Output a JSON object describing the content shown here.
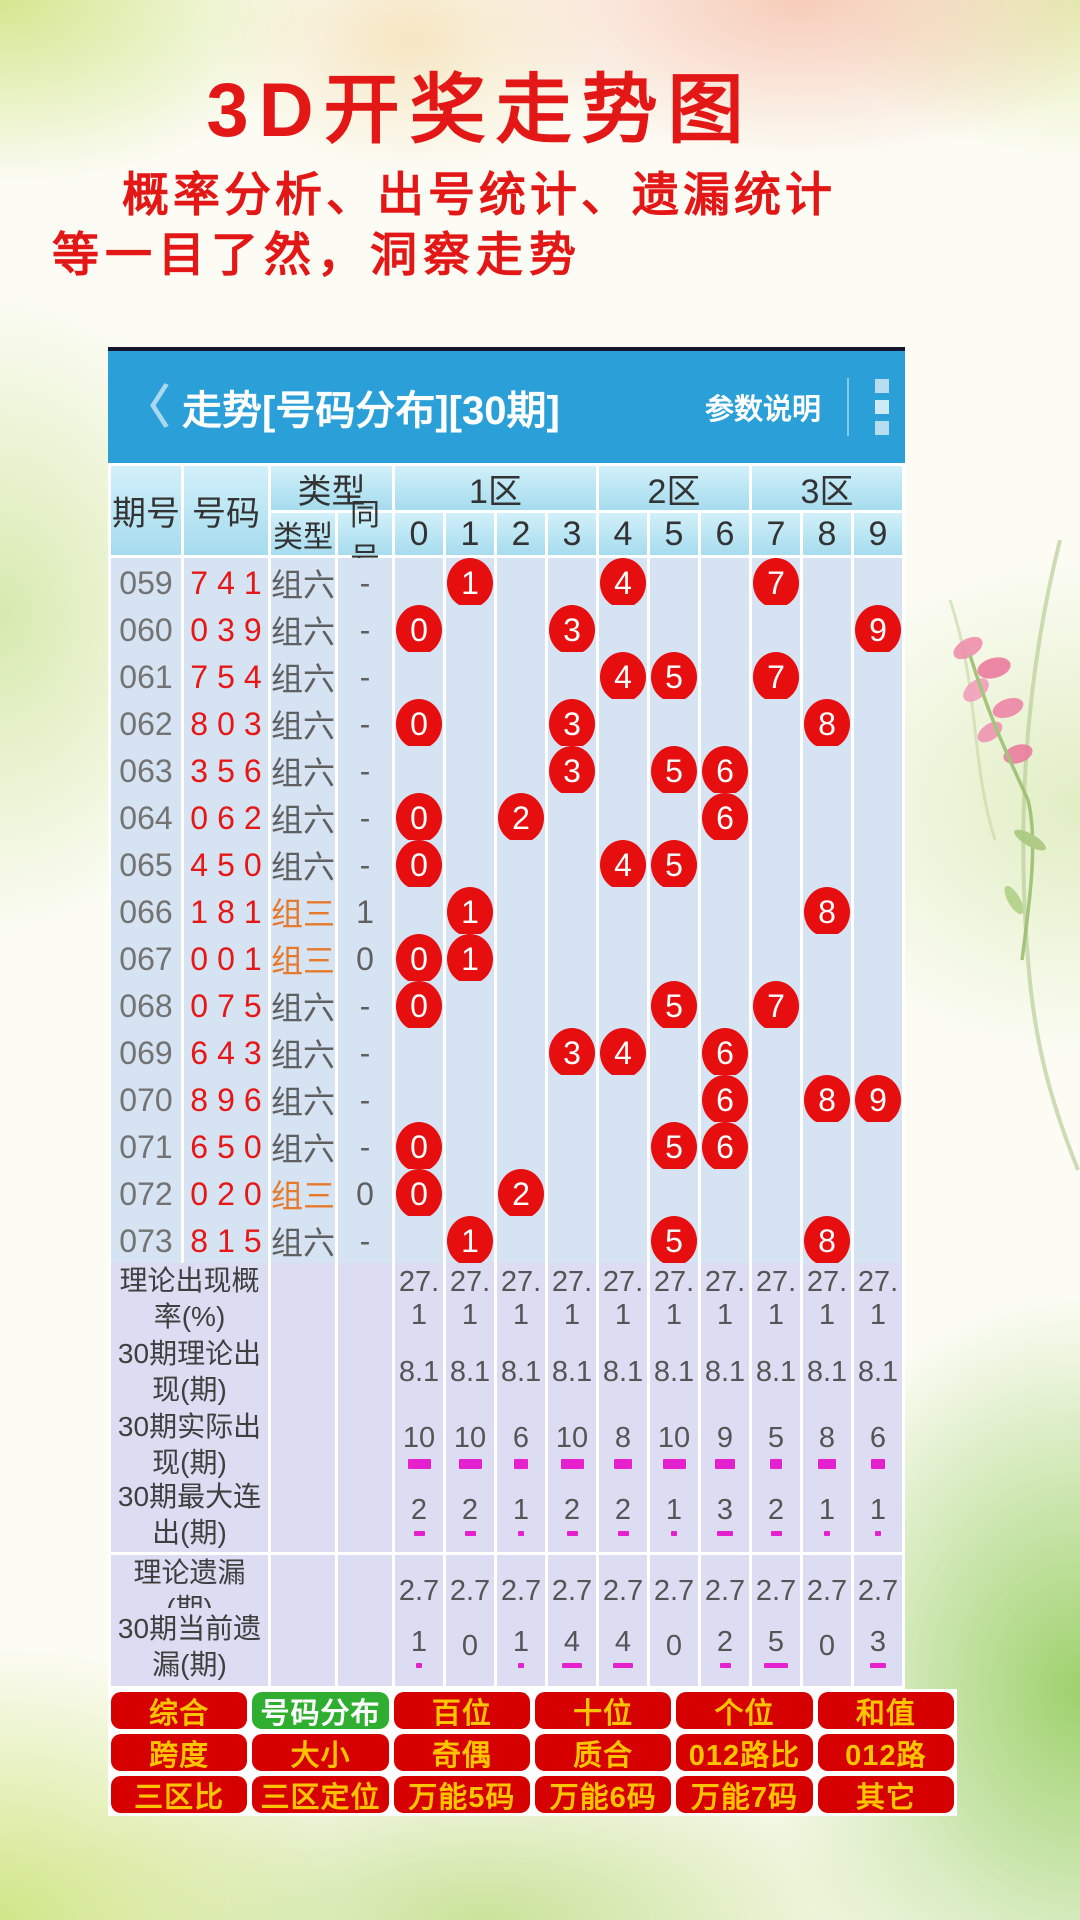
{
  "page": {
    "title": "3D开奖走势图",
    "subtitle_line1": "概率分析、出号统计、遗漏统计",
    "subtitle_line2": "等一目了然，洞察走势"
  },
  "appbar": {
    "back_icon": "〈",
    "title": "走势[号码分布][30期]",
    "params_label": "参数说明",
    "menu_icon": "vertical-squares-menu"
  },
  "table": {
    "headers": {
      "period": "期号",
      "number": "号码",
      "type_group": "类型",
      "type": "类型",
      "same": "同号",
      "zone1": "1区",
      "zone2": "2区",
      "zone3": "3区",
      "digits": [
        "0",
        "1",
        "2",
        "3",
        "4",
        "5",
        "6",
        "7",
        "8",
        "9"
      ]
    },
    "rows": [
      {
        "period": "059",
        "number": "741",
        "type": "组六",
        "same": "-",
        "balls": [
          1,
          4,
          7
        ]
      },
      {
        "period": "060",
        "number": "039",
        "type": "组六",
        "same": "-",
        "balls": [
          0,
          3,
          9
        ]
      },
      {
        "period": "061",
        "number": "754",
        "type": "组六",
        "same": "-",
        "balls": [
          4,
          5,
          7
        ]
      },
      {
        "period": "062",
        "number": "803",
        "type": "组六",
        "same": "-",
        "balls": [
          0,
          3,
          8
        ]
      },
      {
        "period": "063",
        "number": "356",
        "type": "组六",
        "same": "-",
        "balls": [
          3,
          5,
          6
        ]
      },
      {
        "period": "064",
        "number": "062",
        "type": "组六",
        "same": "-",
        "balls": [
          0,
          2,
          6
        ]
      },
      {
        "period": "065",
        "number": "450",
        "type": "组六",
        "same": "-",
        "balls": [
          0,
          4,
          5
        ]
      },
      {
        "period": "066",
        "number": "181",
        "type": "组三",
        "same": "1",
        "balls": [
          1,
          8
        ]
      },
      {
        "period": "067",
        "number": "001",
        "type": "组三",
        "same": "0",
        "balls": [
          0,
          1
        ]
      },
      {
        "period": "068",
        "number": "075",
        "type": "组六",
        "same": "-",
        "balls": [
          0,
          5,
          7
        ]
      },
      {
        "period": "069",
        "number": "643",
        "type": "组六",
        "same": "-",
        "balls": [
          3,
          4,
          6
        ]
      },
      {
        "period": "070",
        "number": "896",
        "type": "组六",
        "same": "-",
        "balls": [
          6,
          8,
          9
        ]
      },
      {
        "period": "071",
        "number": "650",
        "type": "组六",
        "same": "-",
        "balls": [
          0,
          5,
          6
        ]
      },
      {
        "period": "072",
        "number": "020",
        "type": "组三",
        "same": "0",
        "balls": [
          0,
          2
        ]
      },
      {
        "period": "073",
        "number": "815",
        "type": "组六",
        "same": "-",
        "balls": [
          1,
          5,
          8
        ]
      }
    ],
    "stats": [
      {
        "label": "理论出现概率(%)",
        "values": [
          "27.1",
          "27.1",
          "27.1",
          "27.1",
          "27.1",
          "27.1",
          "27.1",
          "27.1",
          "27.1",
          "27.1"
        ],
        "bars": false
      },
      {
        "label": "30期理论出现(期)",
        "values": [
          "8.1",
          "8.1",
          "8.1",
          "8.1",
          "8.1",
          "8.1",
          "8.1",
          "8.1",
          "8.1",
          "8.1"
        ],
        "bars": false
      },
      {
        "label": "30期实际出现(期)",
        "values": [
          10,
          10,
          6,
          10,
          8,
          10,
          9,
          5,
          8,
          6
        ],
        "bars": true
      },
      {
        "label": "30期最大连出(期)",
        "values": [
          2,
          2,
          1,
          2,
          2,
          1,
          3,
          2,
          1,
          1
        ],
        "bars": true
      },
      {
        "label": "理论遗漏(期)",
        "values": [
          "2.7",
          "2.7",
          "2.7",
          "2.7",
          "2.7",
          "2.7",
          "2.7",
          "2.7",
          "2.7",
          "2.7"
        ],
        "bars": false
      },
      {
        "label": "30期当前遗漏(期)",
        "values": [
          1,
          0,
          1,
          4,
          4,
          0,
          2,
          5,
          0,
          3
        ],
        "bars": true
      }
    ]
  },
  "buttons": [
    {
      "label": "综合",
      "active": false
    },
    {
      "label": "号码分布",
      "active": true
    },
    {
      "label": "百位",
      "active": false
    },
    {
      "label": "十位",
      "active": false
    },
    {
      "label": "个位",
      "active": false
    },
    {
      "label": "和值",
      "active": false
    },
    {
      "label": "跨度",
      "active": false
    },
    {
      "label": "大小",
      "active": false
    },
    {
      "label": "奇偶",
      "active": false
    },
    {
      "label": "质合",
      "active": false
    },
    {
      "label": "012路比",
      "active": false
    },
    {
      "label": "012路",
      "active": false
    },
    {
      "label": "三区比",
      "active": false
    },
    {
      "label": "三区定位",
      "active": false
    },
    {
      "label": "万能5码",
      "active": false
    },
    {
      "label": "万能6码",
      "active": false
    },
    {
      "label": "万能7码",
      "active": false
    },
    {
      "label": "其它",
      "active": false
    }
  ],
  "colors": {
    "appbar_blue": "#2b9fd8",
    "header_cell_blue": "#a6dcee",
    "data_cell_blue": "#d6e3f2",
    "stats_cell_lavender": "#dcdcf2",
    "ball_red": "#e60e0e",
    "number_red": "#e61717",
    "type3_orange": "#e6792c",
    "bar_magenta": "#e520ce",
    "button_red": "#d60000",
    "button_gold": "#ffc400",
    "button_active_green": "#2fae2f",
    "title_red": "#e41717"
  }
}
